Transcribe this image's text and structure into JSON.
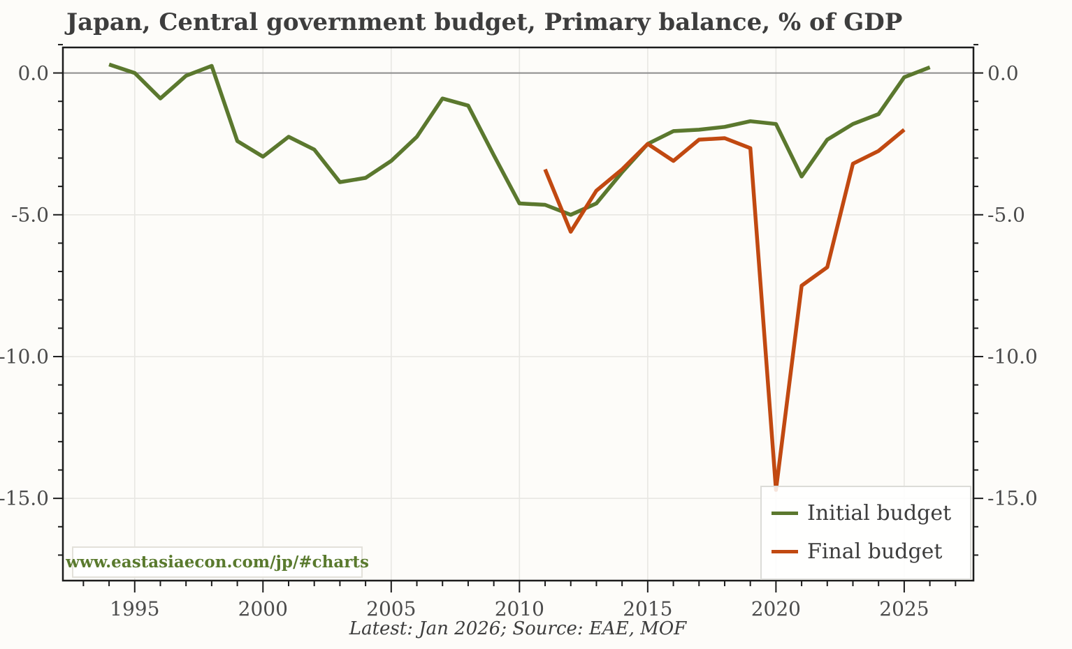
{
  "title": "Japan, Central government budget, Primary balance, % of GDP",
  "caption": "Latest: Jan 2026; Source: EAE, MOF",
  "watermark": "www.eastasiaecon.com/jp/#charts",
  "legend": {
    "position": "lower right",
    "items": [
      {
        "label": "Initial budget",
        "color": "#5b782e"
      },
      {
        "label": "Final budget",
        "color": "#c14911"
      }
    ]
  },
  "colors": {
    "initial_budget": "#5b782e",
    "final_budget": "#c14911",
    "zero_line": "#8c8c8c",
    "grid": "#e8e7e3",
    "spine": "#1c1c1c",
    "text": "#3d3d3d",
    "tick_text": "#4b4b4b",
    "watermark_green": "#5a7a2e"
  },
  "chart_data": {
    "type": "line",
    "title": "Japan, Central government budget, Primary balance, % of GDP",
    "xlabel": "",
    "ylabel": "% of GDP",
    "grid": true,
    "legend_position": "lower right",
    "xlim": [
      1992.2,
      2027.7
    ],
    "ylim": [
      -17.9,
      0.9
    ],
    "xticks_major": [
      1995,
      2000,
      2005,
      2010,
      2015,
      2020,
      2025
    ],
    "xtick_labels": [
      "1995",
      "2000",
      "2005",
      "2010",
      "2015",
      "2020",
      "2025"
    ],
    "xtick_minor_step": 1,
    "yticks_major": [
      0,
      -5,
      -10,
      -15
    ],
    "ytick_labels": [
      "0.0",
      "-5.0",
      "-10.0",
      "-15.0"
    ],
    "ytick_minor_step": 1,
    "series": [
      {
        "name": "Initial budget",
        "color": "#5b782e",
        "x": [
          1994,
          1995,
          1996,
          1997,
          1998,
          1999,
          2000,
          2001,
          2002,
          2003,
          2004,
          2005,
          2006,
          2007,
          2008,
          2009,
          2010,
          2011,
          2012,
          2013,
          2014,
          2015,
          2016,
          2017,
          2018,
          2019,
          2020,
          2021,
          2022,
          2023,
          2024,
          2025,
          2026
        ],
        "values": [
          0.3,
          0.0,
          -0.9,
          -0.1,
          0.25,
          -2.4,
          -2.95,
          -2.25,
          -2.7,
          -3.85,
          -3.7,
          -3.1,
          -2.25,
          -0.9,
          -1.15,
          -2.9,
          -4.6,
          -4.65,
          -5.0,
          -4.6,
          -3.5,
          -2.5,
          -2.05,
          -2.0,
          -1.9,
          -1.7,
          -1.8,
          -3.65,
          -2.35,
          -1.8,
          -1.45,
          -0.15,
          0.2
        ]
      },
      {
        "name": "Final budget",
        "color": "#c14911",
        "x": [
          2011,
          2012,
          2013,
          2014,
          2015,
          2016,
          2017,
          2018,
          2019,
          2020,
          2021,
          2022,
          2023,
          2024,
          2025
        ],
        "values": [
          -3.4,
          -5.6,
          -4.15,
          -3.4,
          -2.5,
          -3.1,
          -2.35,
          -2.3,
          -2.65,
          -14.7,
          -7.5,
          -6.85,
          -3.2,
          -2.75,
          -2.0
        ]
      }
    ]
  }
}
